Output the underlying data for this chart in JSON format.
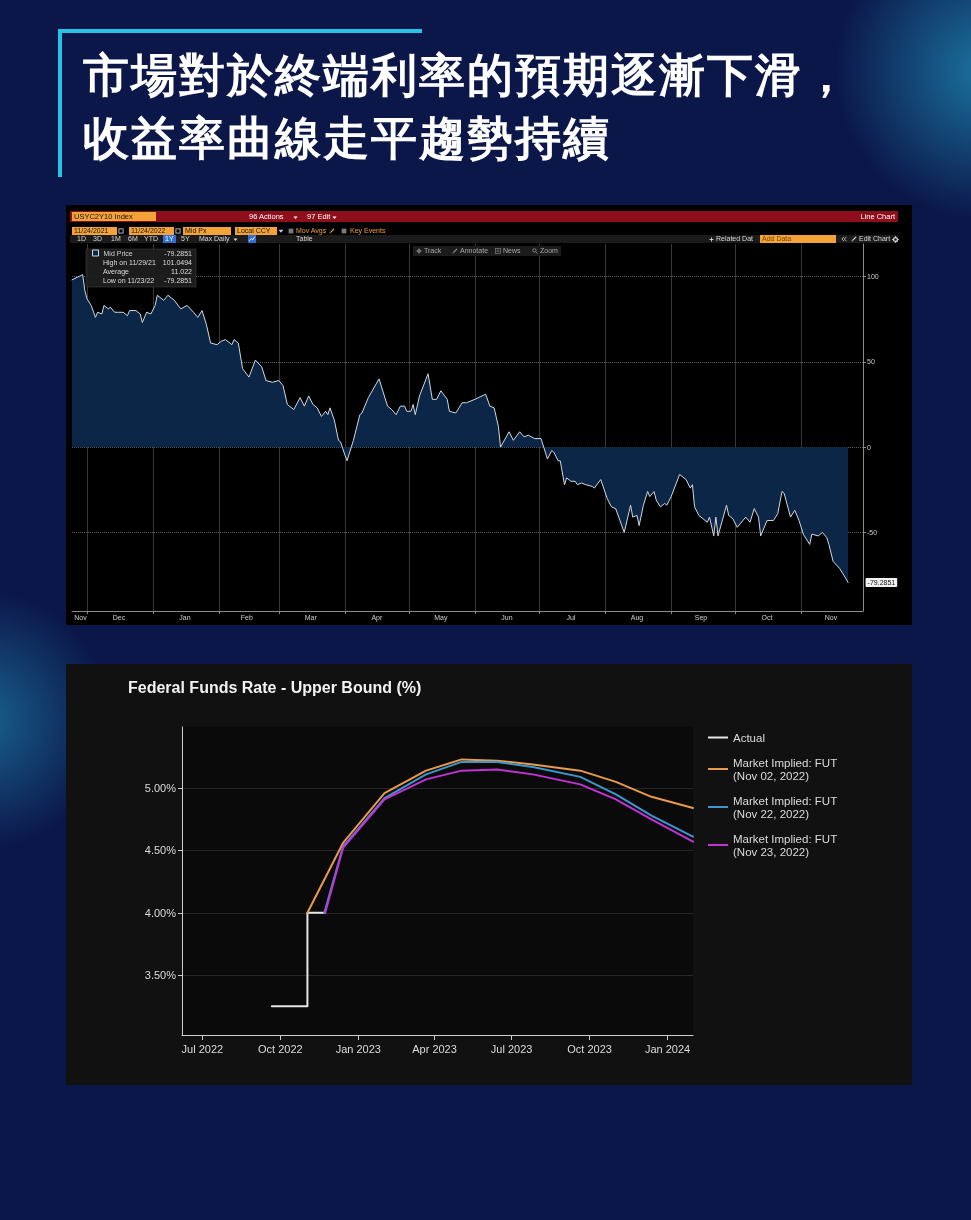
{
  "chart_data": [
    {
      "type": "area",
      "title": "市場對於終端利率的預期逐漸下滑，收益率曲線走平趨勢持續",
      "subtitle": "USYC2Y10 Index",
      "x": [
        "2021-11-24",
        "2021-11-29",
        "2021-11-30",
        "2021-12-01",
        "2021-12-03",
        "2021-12-05",
        "2021-12-06",
        "2021-12-08",
        "2021-12-09",
        "2021-12-11",
        "2021-12-12",
        "2021-12-14",
        "2021-12-16",
        "2021-12-18",
        "2021-12-20",
        "2021-12-21",
        "2021-12-24",
        "2021-12-26",
        "2021-12-27",
        "2021-12-29",
        "2021-12-31",
        "2022-01-02",
        "2022-01-03",
        "2022-01-06",
        "2022-01-08",
        "2022-01-11",
        "2022-01-14",
        "2022-01-17",
        "2022-01-20",
        "2022-01-22",
        "2022-01-24",
        "2022-01-26",
        "2022-01-28",
        "2022-01-31",
        "2022-02-02",
        "2022-02-04",
        "2022-02-07",
        "2022-02-08",
        "2022-02-10",
        "2022-02-12",
        "2022-02-15",
        "2022-02-18",
        "2022-02-21",
        "2022-02-23",
        "2022-02-26",
        "2022-03-01",
        "2022-03-03",
        "2022-03-05",
        "2022-03-08",
        "2022-03-11",
        "2022-03-13",
        "2022-03-15",
        "2022-03-17",
        "2022-03-19",
        "2022-03-21",
        "2022-03-23",
        "2022-03-24",
        "2022-03-25",
        "2022-03-27",
        "2022-03-29",
        "2022-03-30",
        "2022-03-31",
        "2022-04-02",
        "2022-04-03",
        "2022-04-05",
        "2022-04-08",
        "2022-04-09",
        "2022-04-12",
        "2022-04-17",
        "2022-04-21",
        "2022-04-23",
        "2022-04-25",
        "2022-04-27",
        "2022-04-29",
        "2022-04-30",
        "2022-05-02",
        "2022-05-03",
        "2022-05-04",
        "2022-05-06",
        "2022-05-10",
        "2022-05-12",
        "2022-05-14",
        "2022-05-16",
        "2022-05-19",
        "2022-05-20",
        "2022-05-23",
        "2022-05-26",
        "2022-05-28",
        "2022-06-01",
        "2022-06-06",
        "2022-06-08",
        "2022-06-10",
        "2022-06-12",
        "2022-06-13",
        "2022-06-17",
        "2022-06-19",
        "2022-06-22",
        "2022-06-24",
        "2022-06-26",
        "2022-06-29",
        "2022-07-02",
        "2022-07-05",
        "2022-07-07",
        "2022-07-08",
        "2022-07-10",
        "2022-07-11",
        "2022-07-13",
        "2022-07-14",
        "2022-07-16",
        "2022-07-18",
        "2022-07-19",
        "2022-07-21",
        "2022-07-23",
        "2022-07-26",
        "2022-07-27",
        "2022-07-30",
        "2022-08-02",
        "2022-08-04",
        "2022-08-06",
        "2022-08-10",
        "2022-08-13",
        "2022-08-14",
        "2022-08-16",
        "2022-08-17",
        "2022-08-19",
        "2022-08-21",
        "2022-08-22",
        "2022-08-24",
        "2022-08-25",
        "2022-08-27",
        "2022-08-29",
        "2022-08-30",
        "2022-09-01",
        "2022-09-05",
        "2022-09-08",
        "2022-09-10",
        "2022-09-11",
        "2022-09-12",
        "2022-09-14",
        "2022-09-16",
        "2022-09-18",
        "2022-09-19",
        "2022-09-21",
        "2022-09-22",
        "2022-09-23",
        "2022-09-27",
        "2022-09-28",
        "2022-09-30",
        "2022-10-02",
        "2022-10-06",
        "2022-10-08",
        "2022-10-10",
        "2022-10-12",
        "2022-10-13",
        "2022-10-16",
        "2022-10-19",
        "2022-10-21",
        "2022-10-23",
        "2022-10-24",
        "2022-10-27",
        "2022-10-29",
        "2022-10-31",
        "2022-11-02",
        "2022-11-05",
        "2022-11-06",
        "2022-11-09",
        "2022-11-11",
        "2022-11-13",
        "2022-11-14",
        "2022-11-16",
        "2022-11-19",
        "2022-11-21",
        "2022-11-23"
      ],
      "series": [
        {
          "name": "Mid Price",
          "color": "#0b2646",
          "values": [
            98,
            101.0494,
            92,
            87,
            83,
            76,
            79,
            78,
            83,
            81,
            82,
            79,
            79,
            79,
            77,
            80,
            80,
            78,
            73,
            79,
            78,
            83,
            89,
            86,
            89,
            86,
            81,
            83,
            79,
            76,
            80,
            72,
            61,
            60,
            62,
            63,
            60,
            63,
            61,
            46,
            41,
            51,
            47,
            39,
            38,
            39,
            36,
            25,
            22,
            29,
            24,
            30,
            25,
            23,
            18,
            21,
            19,
            23,
            16,
            4,
            3,
            -1,
            -8,
            -4,
            4,
            19,
            20,
            29,
            40,
            24,
            22,
            19,
            24,
            24,
            21,
            21,
            25,
            19,
            30,
            43,
            28,
            28,
            33,
            28,
            21,
            20,
            26,
            26,
            28,
            31,
            24,
            23,
            12,
            0,
            9,
            4,
            9,
            6,
            7,
            5,
            5,
            -7,
            -2,
            -3,
            -8,
            -8,
            -22,
            -18,
            -20,
            -20,
            -22,
            -21,
            -22,
            -23,
            -24,
            -19,
            -30,
            -35,
            -36,
            -50,
            -34,
            -41,
            -40,
            -46,
            -34,
            -26,
            -29,
            -26,
            -31,
            -35,
            -33,
            -34,
            -29,
            -16,
            -19,
            -24,
            -22,
            -35,
            -40,
            -42,
            -44,
            -41,
            -52,
            -41,
            -52,
            -34,
            -40,
            -42,
            -47,
            -41,
            -44,
            -36,
            -41,
            -52,
            -43,
            -43,
            -39,
            -26,
            -27,
            -41,
            -37,
            -43,
            -51,
            -57,
            -51,
            -52,
            -50,
            -53,
            -57,
            -67,
            -71,
            -75,
            -79.2851
          ]
        }
      ],
      "xlim": [
        "2021-11-24",
        "2022-11-30"
      ],
      "xticks": [
        {
          "value": "2021-11-28",
          "label": "Nov"
        },
        {
          "value": "2021-12-01",
          "label": null
        },
        {
          "value": "2021-12-16",
          "label": "Dec"
        },
        {
          "value": "2022-01-01",
          "label": null
        },
        {
          "value": "2022-01-16",
          "label": "Jan"
        },
        {
          "value": "2022-02-01",
          "label": null
        },
        {
          "value": "2022-02-14",
          "label": "Feb"
        },
        {
          "value": "2022-03-01",
          "label": null
        },
        {
          "value": "2022-03-16",
          "label": "Mar"
        },
        {
          "value": "2022-04-01",
          "label": null
        },
        {
          "value": "2022-04-16",
          "label": "Apr"
        },
        {
          "value": "2022-05-01",
          "label": null
        },
        {
          "value": "2022-05-16",
          "label": "May"
        },
        {
          "value": "2022-06-01",
          "label": null
        },
        {
          "value": "2022-06-16",
          "label": "Jun"
        },
        {
          "value": "2022-07-01",
          "label": null
        },
        {
          "value": "2022-07-16",
          "label": "Jul"
        },
        {
          "value": "2022-08-01",
          "label": null
        },
        {
          "value": "2022-08-16",
          "label": "Aug"
        },
        {
          "value": "2022-09-01",
          "label": null
        },
        {
          "value": "2022-09-15",
          "label": "Sep"
        },
        {
          "value": "2022-10-01",
          "label": null
        },
        {
          "value": "2022-10-16",
          "label": "Oct"
        },
        {
          "value": "2022-11-01",
          "label": null
        },
        {
          "value": "2022-11-15",
          "label": "Nov"
        }
      ],
      "ylim": [
        -96,
        119
      ],
      "yticks": [
        -50,
        0,
        50,
        100
      ],
      "grid": true,
      "legend": "top left",
      "annotations": [
        "96 Actions",
        "97 Edit",
        "Line Chart",
        "11/24/2021",
        "11/24/2022",
        "Mid Px",
        "Local CCY",
        "Mov Avgs",
        "Key Events",
        "1D",
        "3D",
        "1M",
        "6M",
        "YTD",
        "1Y",
        "5Y",
        "Max",
        "Daily",
        "Table",
        "Related Dat",
        "Add Data",
        "Edit Chart",
        "Track",
        "Annotate",
        "News",
        "Zoom",
        "-79.2851",
        "High on 11/29/21",
        "101.0494",
        "Average",
        "11.022",
        "Low on 11/23/22",
        "-79.2851",
        {
          "text": "-79.2851",
          "x": "2022-11-23",
          "y": -79.2851
        }
      ]
    },
    {
      "type": "line",
      "title": "Federal Funds Rate - Upper Bound (%)",
      "series": [
        {
          "name": "Actual",
          "type": "step",
          "color": "#e6e6e6",
          "x": [
            "2022-09-21",
            "2022-11-02",
            "2022-11-23"
          ],
          "values": [
            3.25,
            4.0,
            4.0
          ]
        },
        {
          "name": "Market Implied: FUT (Nov 02, 2022)",
          "color": "#e89b4c",
          "x": [
            "2022-11-02",
            "2022-12-14",
            "2023-02-01",
            "2023-03-22",
            "2023-05-03",
            "2023-06-14",
            "2023-07-26",
            "2023-09-20",
            "2023-11-01",
            "2023-12-13",
            "2024-01-31"
          ],
          "values": [
            4.0,
            4.56,
            4.96,
            5.14,
            5.23,
            5.22,
            5.19,
            5.14,
            5.05,
            4.93,
            4.84
          ]
        },
        {
          "name": "Market Implied: FUT (Nov 22, 2022)",
          "color": "#3d97cc",
          "x": [
            "2022-11-22",
            "2022-12-14",
            "2023-02-01",
            "2023-03-22",
            "2023-05-03",
            "2023-06-14",
            "2023-07-26",
            "2023-09-20",
            "2023-11-01",
            "2023-12-13",
            "2024-01-31"
          ],
          "values": [
            4.0,
            4.53,
            4.92,
            5.11,
            5.21,
            5.21,
            5.17,
            5.09,
            4.95,
            4.78,
            4.61
          ]
        },
        {
          "name": "Market Implied: FUT (Nov 23, 2022)",
          "color": "#c232d6",
          "x": [
            "2022-11-23",
            "2022-12-14",
            "2023-02-01",
            "2023-03-22",
            "2023-05-03",
            "2023-06-14",
            "2023-07-26",
            "2023-09-20",
            "2023-11-01",
            "2023-12-13",
            "2024-01-31"
          ],
          "values": [
            4.0,
            4.52,
            4.91,
            5.07,
            5.14,
            5.15,
            5.11,
            5.03,
            4.91,
            4.75,
            4.57
          ]
        }
      ],
      "xlim": [
        "2022-06-07",
        "2024-01-31"
      ],
      "xticks": [
        {
          "value": "2022-07-01",
          "label": "Jul 2022"
        },
        {
          "value": "2022-10-01",
          "label": "Oct 2022"
        },
        {
          "value": "2023-01-01",
          "label": "Jan 2023"
        },
        {
          "value": "2023-04-01",
          "label": "Apr 2023"
        },
        {
          "value": "2023-07-01",
          "label": "Jul 2023"
        },
        {
          "value": "2023-10-01",
          "label": "Oct 2023"
        },
        {
          "value": "2024-01-01",
          "label": "Jan 2024"
        }
      ],
      "ylim": [
        3.02,
        5.49
      ],
      "yticks": [
        {
          "value": 3.5,
          "label": "3.50%"
        },
        {
          "value": 4,
          "label": "4.00%"
        },
        {
          "value": 4.5,
          "label": "4.50%"
        },
        {
          "value": 5,
          "label": "5.00%"
        }
      ],
      "grid": "y",
      "legend": "right"
    }
  ]
}
